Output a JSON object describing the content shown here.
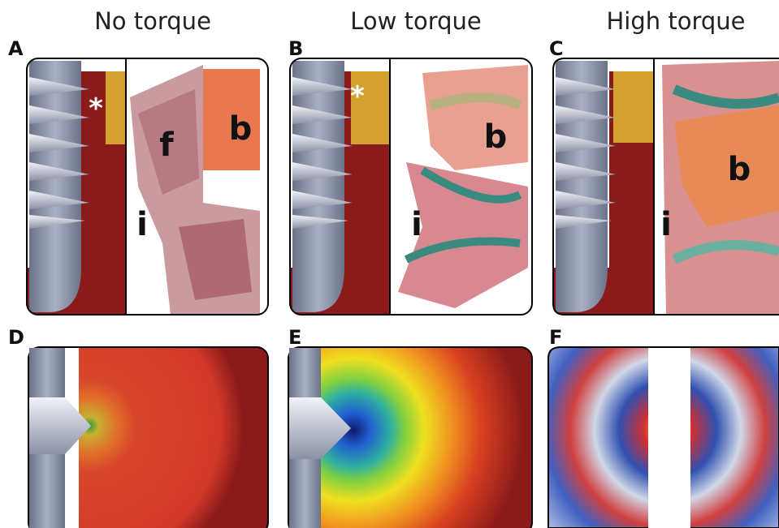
{
  "columns": [
    {
      "title": "No torque"
    },
    {
      "title": "Low torque"
    },
    {
      "title": "High torque"
    }
  ],
  "panels": [
    {
      "label": "A",
      "annotations": [
        "*",
        "f",
        "b",
        "i"
      ]
    },
    {
      "label": "B",
      "annotations": [
        "*",
        "b",
        "i"
      ]
    },
    {
      "label": "C",
      "annotations": [
        "b",
        "i"
      ]
    },
    {
      "label": "D"
    },
    {
      "label": "E"
    },
    {
      "label": "F"
    }
  ]
}
